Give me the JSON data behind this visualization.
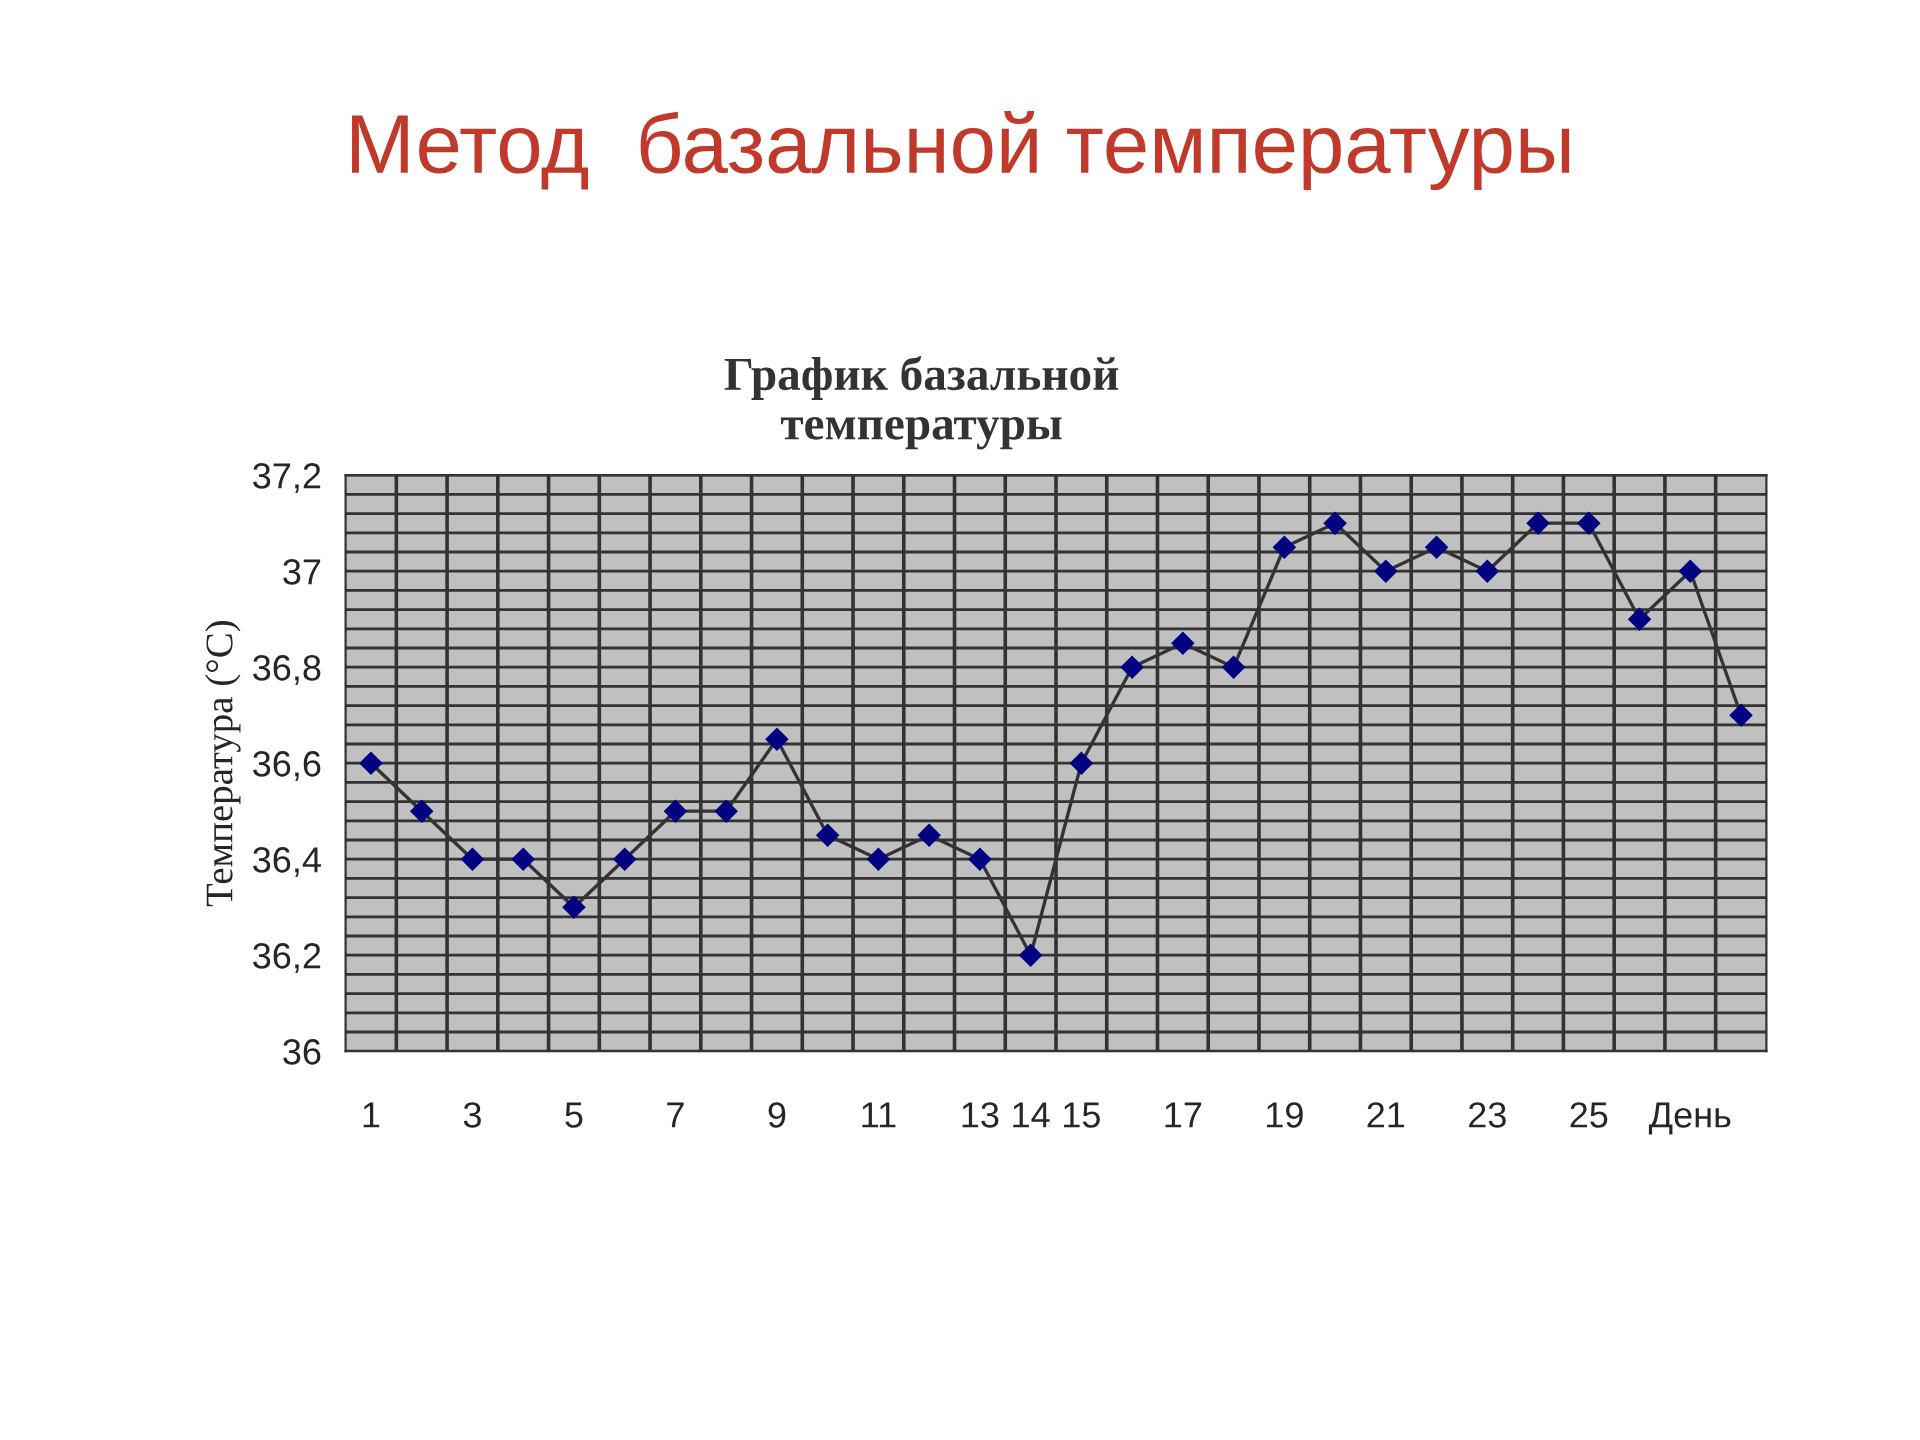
{
  "chart_data": {
    "type": "line",
    "title": "Метод  базальной температуры",
    "subtitle": "График базальной\nтемпературы",
    "ylabel": "Температура (°C)",
    "categories": [
      "1",
      null,
      "3",
      null,
      "5",
      null,
      "7",
      null,
      "9",
      null,
      "11",
      null,
      "13",
      "14",
      "15",
      null,
      "17",
      null,
      "19",
      null,
      "21",
      null,
      "23",
      null,
      "25",
      null,
      "День",
      null
    ],
    "series": [
      {
        "color": "#000080",
        "values": [
          36.6,
          36.5,
          36.4,
          36.4,
          36.3,
          36.4,
          36.5,
          36.5,
          36.65,
          36.45,
          36.4,
          36.45,
          36.4,
          36.2,
          36.6,
          36.8,
          36.85,
          36.8,
          37.05,
          37.1,
          37.0,
          37.05,
          37.0,
          37.1,
          37.1,
          36.9,
          37.0,
          36.7
        ]
      }
    ],
    "ylim": [
      36,
      37.2
    ],
    "yticks": [
      {
        "value": 36,
        "label": "36"
      },
      {
        "value": 36.2,
        "label": "36,2"
      },
      {
        "value": 36.4,
        "label": "36,4"
      },
      {
        "value": 36.6,
        "label": "36,6"
      },
      {
        "value": 36.8,
        "label": "36,8"
      },
      {
        "value": 37,
        "label": "37"
      },
      {
        "value": 37.2,
        "label": "37,2"
      }
    ],
    "grid": true,
    "marker": "diamond",
    "line_style": "solid",
    "legend": false
  }
}
